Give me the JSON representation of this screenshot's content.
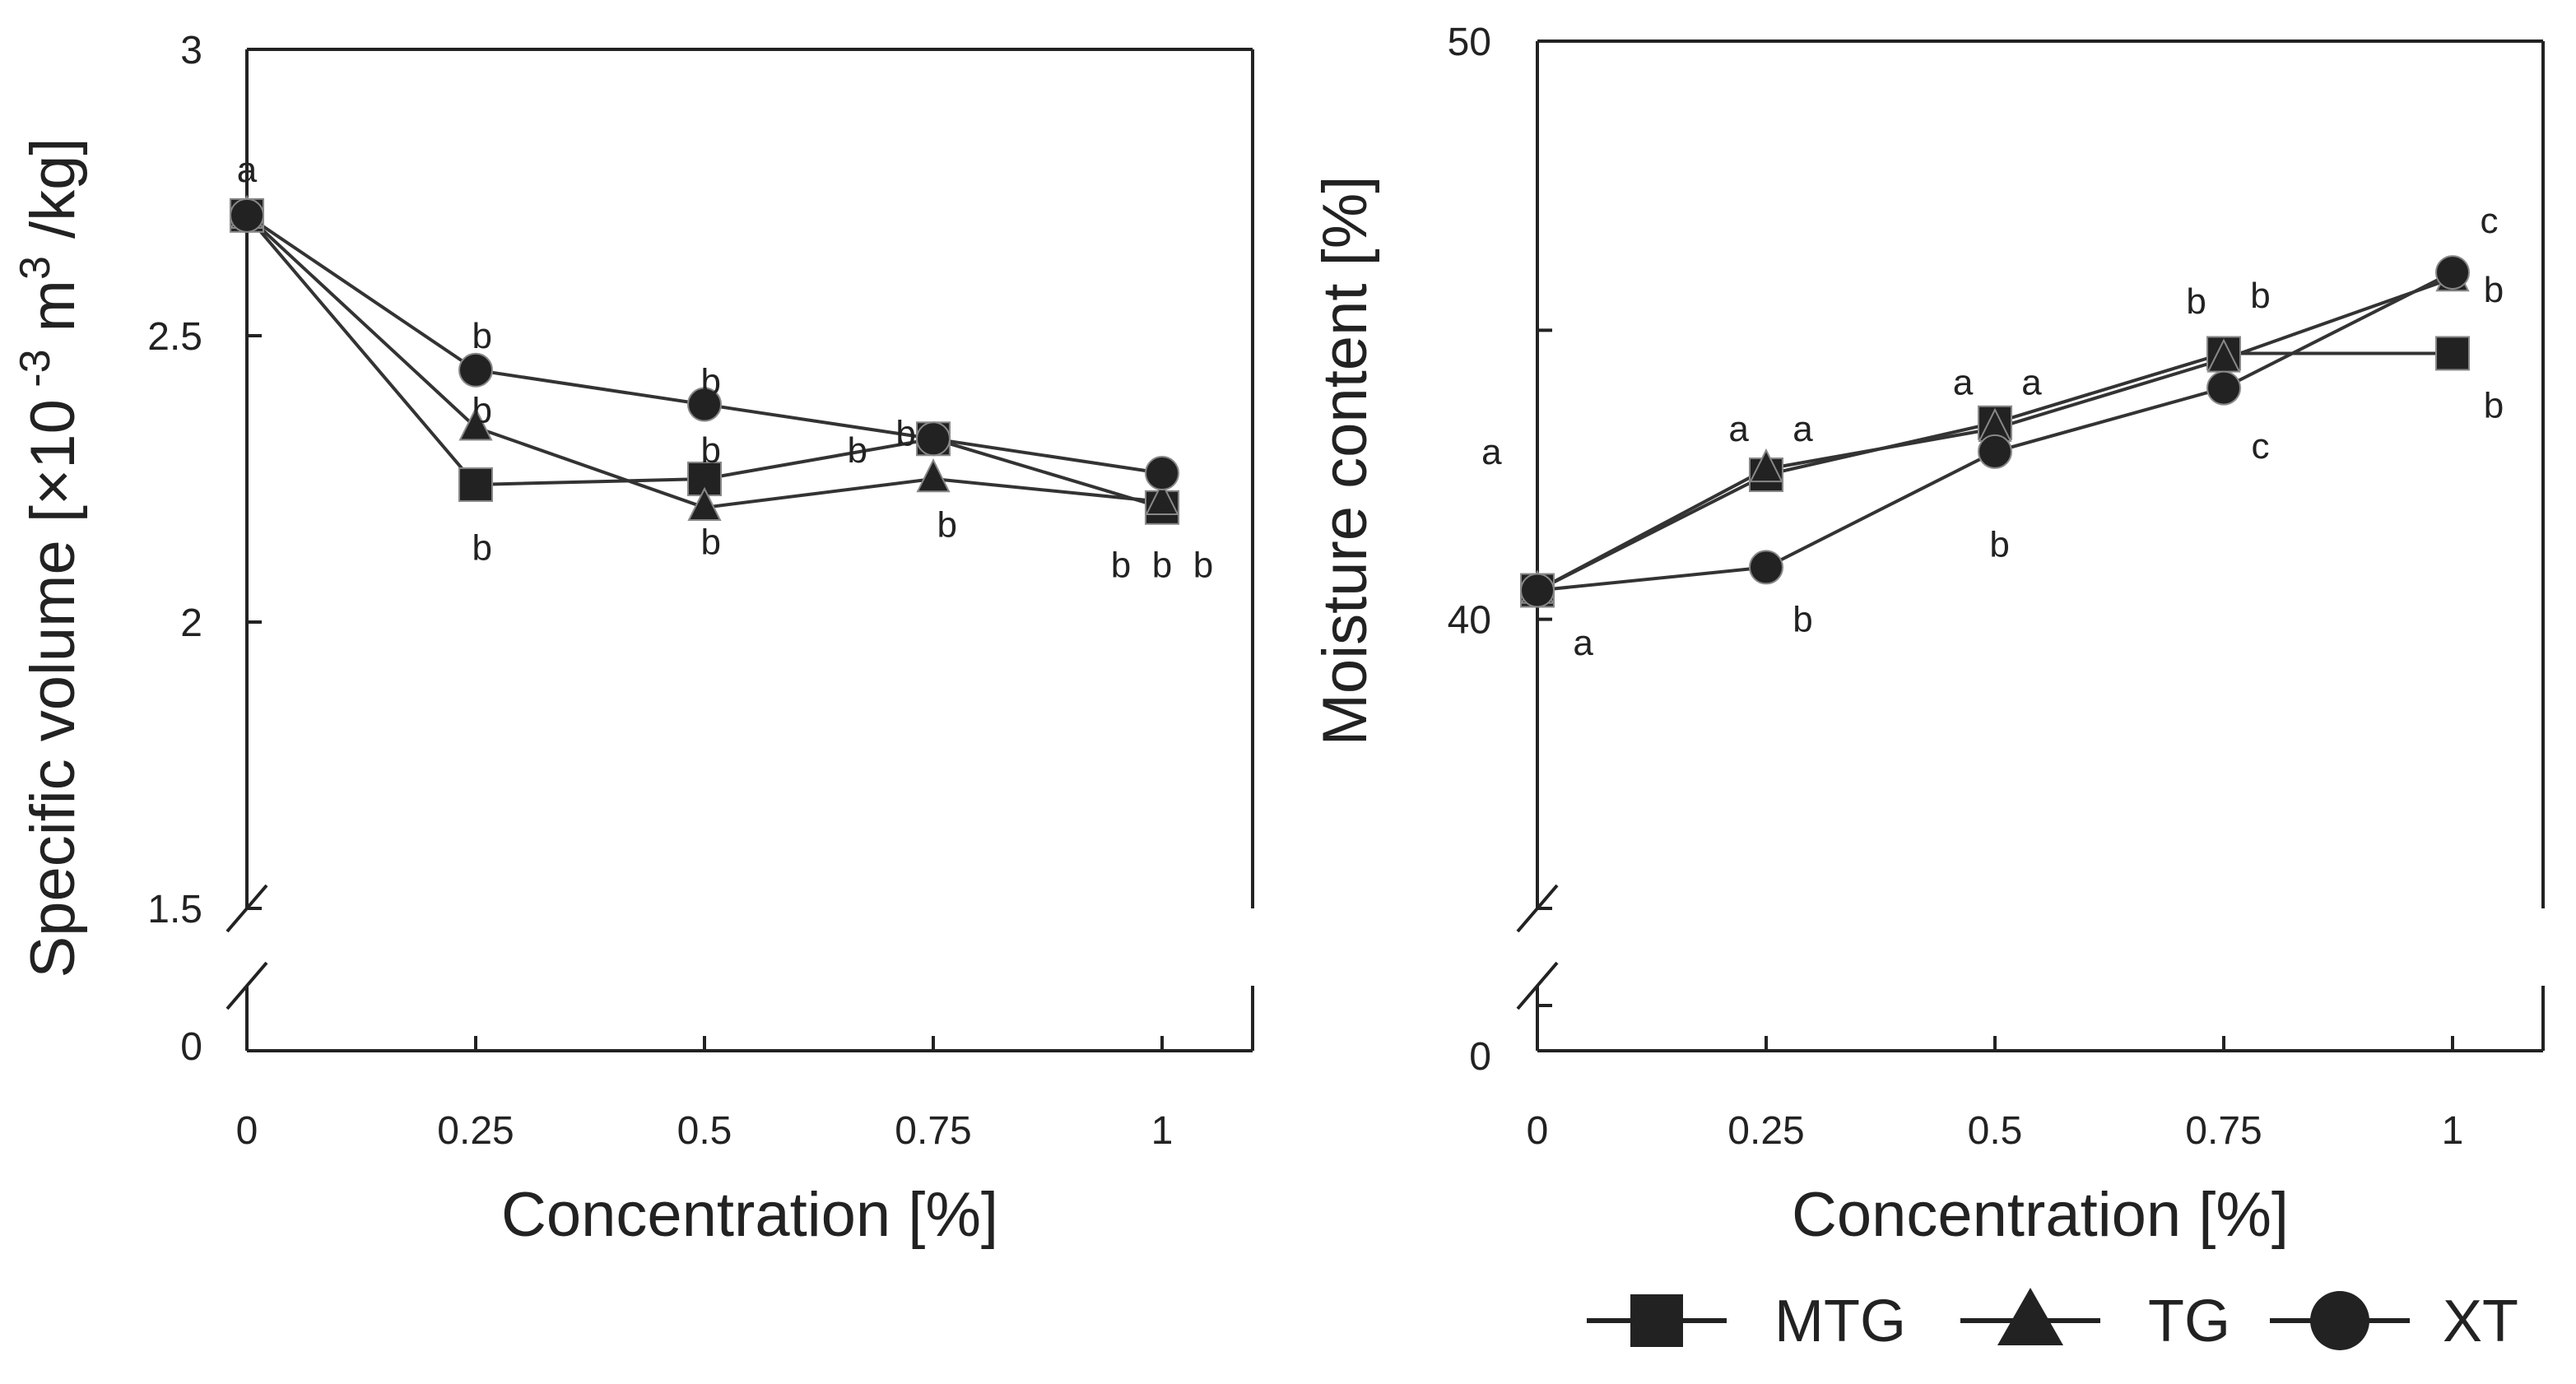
{
  "chart_data": [
    {
      "type": "line",
      "xlabel": "Concentration [%]",
      "ylabel_parts": [
        "Specific volume [",
        "×10",
        " -3",
        " m",
        "3",
        " /kg]"
      ],
      "x": [
        0,
        0.25,
        0.5,
        0.75,
        1
      ],
      "x_tick_labels": [
        "0",
        "0.25",
        "0.5",
        "0.75",
        "1"
      ],
      "ylim": [
        1.5,
        3
      ],
      "y_ticks": [
        1.5,
        2,
        2.5,
        3
      ],
      "y_tick_labels": [
        "1.5",
        "2",
        "2.5",
        "3"
      ],
      "axis_break": true,
      "y_break_label": "0",
      "series": [
        {
          "name": "MTG",
          "marker": "square",
          "values": [
            2.71,
            2.24,
            2.25,
            2.32,
            2.2
          ]
        },
        {
          "name": "TG",
          "marker": "triangle",
          "values": [
            2.71,
            2.34,
            2.2,
            2.25,
            2.21
          ]
        },
        {
          "name": "XT",
          "marker": "circle",
          "values": [
            2.71,
            2.44,
            2.38,
            2.32,
            2.26
          ]
        }
      ],
      "annotations": [
        {
          "x": 0,
          "y": 2.79,
          "text": "a"
        },
        {
          "x": 0.257,
          "y": 2.5,
          "text": "b"
        },
        {
          "x": 0.257,
          "y": 2.37,
          "text": "b"
        },
        {
          "x": 0.257,
          "y": 2.13,
          "text": "b"
        },
        {
          "x": 0.507,
          "y": 2.42,
          "text": "b"
        },
        {
          "x": 0.507,
          "y": 2.3,
          "text": "b"
        },
        {
          "x": 0.507,
          "y": 2.14,
          "text": "b"
        },
        {
          "x": 0.72,
          "y": 2.33,
          "text": "b"
        },
        {
          "x": 0.667,
          "y": 2.3,
          "text": "b"
        },
        {
          "x": 0.765,
          "y": 2.17,
          "text": "b"
        },
        {
          "x": 0.955,
          "y": 2.1,
          "text": "b"
        },
        {
          "x": 1.0,
          "y": 2.1,
          "text": "b"
        },
        {
          "x": 1.045,
          "y": 2.1,
          "text": "b"
        }
      ]
    },
    {
      "type": "line",
      "xlabel": "Concentration [%]",
      "ylabel": "Moisture content [%]",
      "x": [
        0,
        0.25,
        0.5,
        0.75,
        1
      ],
      "x_tick_labels": [
        "0",
        "0.25",
        "0.5",
        "0.75",
        "1"
      ],
      "ylim": [
        35,
        50
      ],
      "y_ticks": [
        35,
        40,
        45,
        50
      ],
      "y_tick_labels": [
        "",
        "40",
        "",
        "50"
      ],
      "axis_break": true,
      "y_break_label": "0",
      "series": [
        {
          "name": "MTG",
          "marker": "square",
          "values": [
            40.5,
            42.5,
            43.4,
            44.6,
            44.6
          ]
        },
        {
          "name": "TG",
          "marker": "triangle",
          "values": [
            40.5,
            42.6,
            43.3,
            44.5,
            45.9
          ]
        },
        {
          "name": "XT",
          "marker": "circle",
          "values": [
            40.5,
            40.9,
            42.9,
            44.0,
            46.0
          ]
        }
      ],
      "annotations": [
        {
          "x": 0.05,
          "y": 39.6,
          "text": "a"
        },
        {
          "x": -0.05,
          "y": 42.9,
          "text": "a"
        },
        {
          "x": 0.22,
          "y": 43.3,
          "text": "a"
        },
        {
          "x": 0.29,
          "y": 43.3,
          "text": "a"
        },
        {
          "x": 0.29,
          "y": 40.0,
          "text": "b"
        },
        {
          "x": 0.465,
          "y": 44.1,
          "text": "a"
        },
        {
          "x": 0.54,
          "y": 44.1,
          "text": "a"
        },
        {
          "x": 0.505,
          "y": 41.3,
          "text": "b"
        },
        {
          "x": 0.72,
          "y": 45.5,
          "text": "b"
        },
        {
          "x": 0.79,
          "y": 45.6,
          "text": "b"
        },
        {
          "x": 0.79,
          "y": 43.0,
          "text": "c"
        },
        {
          "x": 1.04,
          "y": 46.9,
          "text": "c"
        },
        {
          "x": 1.045,
          "y": 45.7,
          "text": "b"
        },
        {
          "x": 1.045,
          "y": 43.7,
          "text": "b"
        }
      ]
    }
  ],
  "legend": [
    {
      "label": "MTG",
      "marker": "square"
    },
    {
      "label": "TG",
      "marker": "triangle"
    },
    {
      "label": "XT",
      "marker": "circle"
    }
  ]
}
